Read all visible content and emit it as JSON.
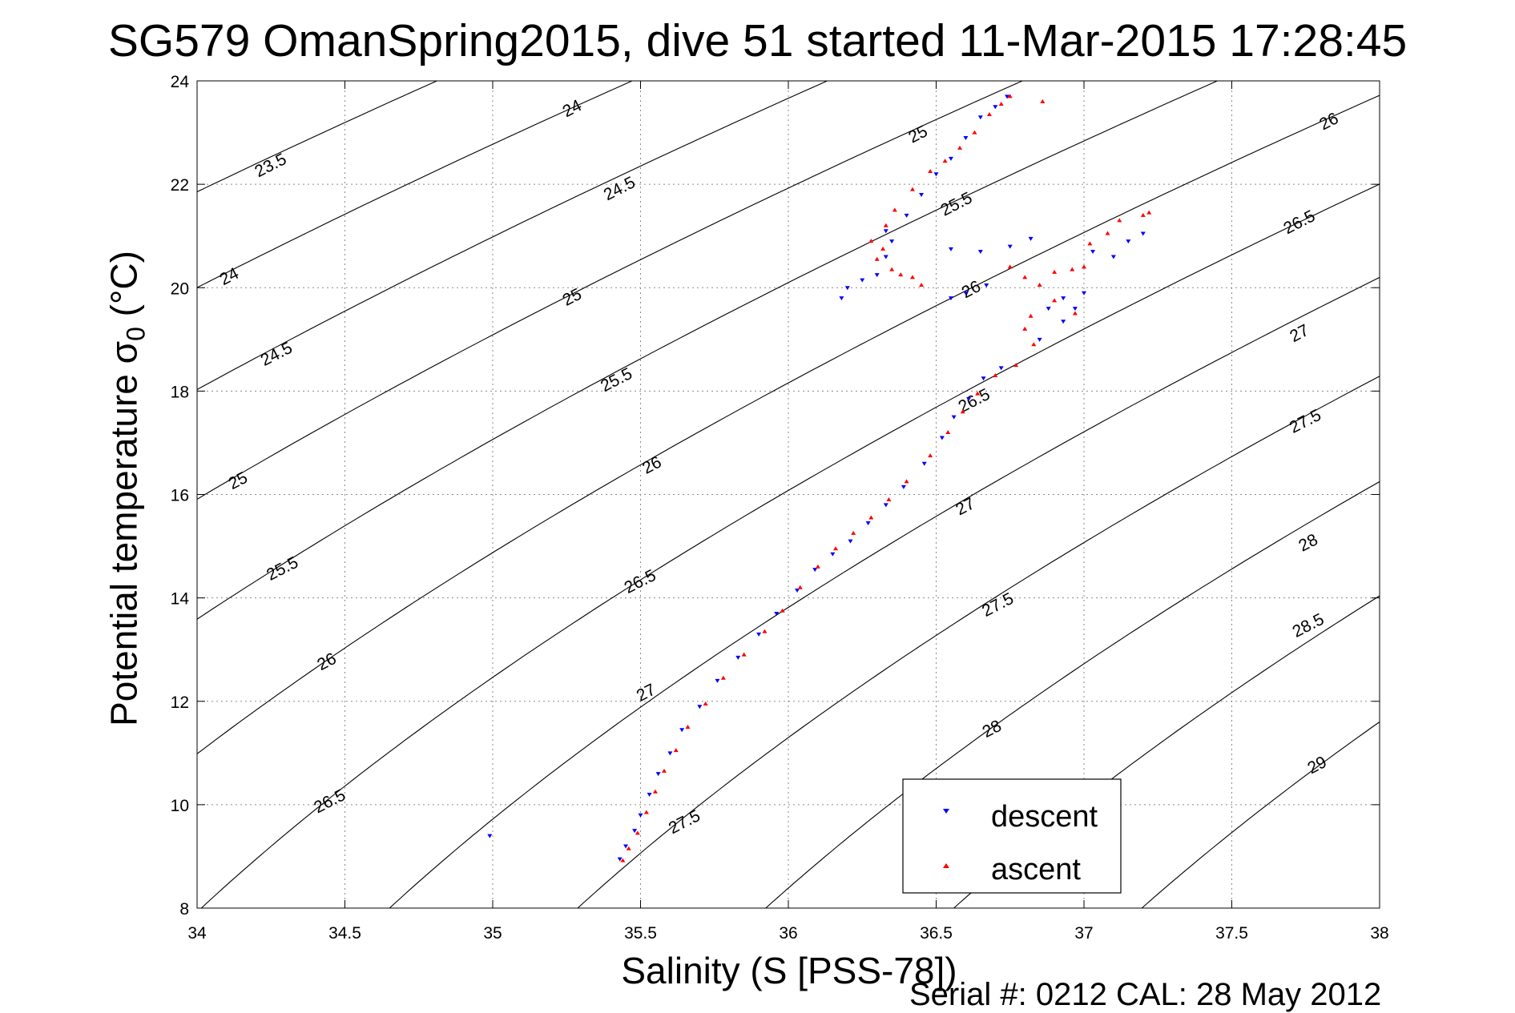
{
  "chart_data": {
    "type": "scatter",
    "title": "SG579 OmanSpring2015, dive 51 started 11-Mar-2015 17:28:45",
    "xlabel": "Salinity (S [PSS-78])",
    "ylabel": "Potential temperature σ",
    "ylabel_subscript": "0",
    "ylabel_unit": "(°C)",
    "xlim": [
      34,
      38
    ],
    "ylim": [
      8,
      24
    ],
    "x_ticks": [
      34,
      34.5,
      35,
      35.5,
      36,
      36.5,
      37,
      37.5,
      38
    ],
    "x_tick_labels": [
      "34",
      "34.5",
      "35",
      "35.5",
      "36",
      "36.5",
      "37",
      "37.5",
      "38"
    ],
    "y_ticks": [
      8,
      10,
      12,
      14,
      16,
      18,
      20,
      22,
      24
    ],
    "y_tick_labels": [
      "8",
      "10",
      "12",
      "14",
      "16",
      "18",
      "20",
      "22",
      "24"
    ],
    "grid": true,
    "legend_position": "bottom-right",
    "density_contours": {
      "levels": [
        23.5,
        24,
        24.5,
        25,
        25.5,
        26,
        26.5,
        27,
        27.5,
        28,
        28.5,
        29
      ],
      "color": "#000000",
      "labels": [
        {
          "text": "24",
          "x": 35.27,
          "y": 23.45
        },
        {
          "text": "23.5",
          "x": 34.25,
          "y": 22.35
        },
        {
          "text": "24.5",
          "x": 35.43,
          "y": 21.9
        },
        {
          "text": "25",
          "x": 36.44,
          "y": 22.95
        },
        {
          "text": "25.5",
          "x": 36.57,
          "y": 21.6
        },
        {
          "text": "26",
          "x": 37.83,
          "y": 23.2
        },
        {
          "text": "26.5",
          "x": 37.73,
          "y": 21.25
        },
        {
          "text": "24",
          "x": 34.11,
          "y": 20.2
        },
        {
          "text": "25",
          "x": 35.27,
          "y": 19.8
        },
        {
          "text": "24.5",
          "x": 34.27,
          "y": 18.7
        },
        {
          "text": "25.5",
          "x": 35.42,
          "y": 18.2
        },
        {
          "text": "26",
          "x": 36.62,
          "y": 19.95
        },
        {
          "text": "26.5",
          "x": 36.63,
          "y": 17.8
        },
        {
          "text": "27",
          "x": 37.73,
          "y": 19.1
        },
        {
          "text": "27.5",
          "x": 37.75,
          "y": 17.4
        },
        {
          "text": "25",
          "x": 34.14,
          "y": 16.25
        },
        {
          "text": "26",
          "x": 35.54,
          "y": 16.55
        },
        {
          "text": "27",
          "x": 36.6,
          "y": 15.75
        },
        {
          "text": "28",
          "x": 37.76,
          "y": 15.05
        },
        {
          "text": "25.5",
          "x": 34.29,
          "y": 14.55
        },
        {
          "text": "26.5",
          "x": 35.5,
          "y": 14.3
        },
        {
          "text": "27.5",
          "x": 36.71,
          "y": 13.85
        },
        {
          "text": "28.5",
          "x": 37.76,
          "y": 13.45
        },
        {
          "text": "26",
          "x": 34.44,
          "y": 12.75
        },
        {
          "text": "27",
          "x": 35.52,
          "y": 12.15
        },
        {
          "text": "28",
          "x": 36.69,
          "y": 11.45
        },
        {
          "text": "26.5",
          "x": 34.45,
          "y": 10.05
        },
        {
          "text": "27.5",
          "x": 35.65,
          "y": 9.65
        },
        {
          "text": "29",
          "x": 37.79,
          "y": 10.75
        }
      ]
    },
    "series": [
      {
        "name": "descent",
        "color": "#0000ff",
        "marker": "triangle-down",
        "points": [
          [
            35.43,
            8.95
          ],
          [
            35.45,
            9.2
          ],
          [
            35.48,
            9.5
          ],
          [
            35.5,
            9.8
          ],
          [
            35.53,
            10.2
          ],
          [
            35.56,
            10.6
          ],
          [
            35.6,
            11.0
          ],
          [
            35.64,
            11.45
          ],
          [
            35.7,
            11.9
          ],
          [
            35.76,
            12.4
          ],
          [
            35.83,
            12.85
          ],
          [
            35.9,
            13.3
          ],
          [
            35.96,
            13.7
          ],
          [
            36.03,
            14.15
          ],
          [
            36.09,
            14.55
          ],
          [
            36.15,
            14.85
          ],
          [
            36.21,
            15.1
          ],
          [
            36.27,
            15.45
          ],
          [
            36.33,
            15.8
          ],
          [
            36.39,
            16.15
          ],
          [
            36.46,
            16.6
          ],
          [
            36.52,
            17.1
          ],
          [
            36.56,
            17.5
          ],
          [
            36.61,
            17.85
          ],
          [
            36.66,
            18.25
          ],
          [
            36.72,
            18.45
          ],
          [
            36.85,
            19.0
          ],
          [
            36.93,
            19.35
          ],
          [
            36.97,
            19.6
          ],
          [
            37.0,
            19.9
          ],
          [
            36.93,
            19.8
          ],
          [
            36.88,
            19.6
          ],
          [
            37.03,
            20.7
          ],
          [
            37.1,
            20.6
          ],
          [
            37.15,
            20.9
          ],
          [
            37.2,
            21.05
          ],
          [
            36.55,
            19.8
          ],
          [
            36.6,
            19.9
          ],
          [
            36.67,
            20.05
          ],
          [
            36.55,
            20.75
          ],
          [
            36.65,
            20.7
          ],
          [
            36.75,
            20.8
          ],
          [
            36.82,
            20.95
          ],
          [
            36.18,
            19.8
          ],
          [
            36.2,
            20.0
          ],
          [
            36.25,
            20.15
          ],
          [
            36.3,
            20.25
          ],
          [
            36.33,
            20.6
          ],
          [
            36.35,
            20.9
          ],
          [
            36.33,
            21.1
          ],
          [
            36.4,
            21.4
          ],
          [
            36.45,
            21.8
          ],
          [
            36.5,
            22.2
          ],
          [
            36.55,
            22.5
          ],
          [
            36.6,
            22.9
          ],
          [
            36.65,
            23.3
          ],
          [
            36.7,
            23.5
          ],
          [
            36.74,
            23.7
          ],
          [
            34.99,
            9.4
          ]
        ]
      },
      {
        "name": "ascent",
        "color": "#ff0000",
        "marker": "triangle-up",
        "points": [
          [
            35.44,
            8.92
          ],
          [
            35.46,
            9.15
          ],
          [
            35.49,
            9.45
          ],
          [
            35.52,
            9.85
          ],
          [
            35.55,
            10.25
          ],
          [
            35.58,
            10.65
          ],
          [
            35.62,
            11.05
          ],
          [
            35.66,
            11.5
          ],
          [
            35.72,
            11.95
          ],
          [
            35.78,
            12.45
          ],
          [
            35.85,
            12.9
          ],
          [
            35.92,
            13.35
          ],
          [
            35.98,
            13.75
          ],
          [
            36.04,
            14.2
          ],
          [
            36.1,
            14.6
          ],
          [
            36.16,
            14.95
          ],
          [
            36.22,
            15.25
          ],
          [
            36.28,
            15.55
          ],
          [
            36.34,
            15.9
          ],
          [
            36.4,
            16.25
          ],
          [
            36.48,
            16.75
          ],
          [
            36.54,
            17.2
          ],
          [
            36.59,
            17.6
          ],
          [
            36.64,
            17.95
          ],
          [
            36.7,
            18.3
          ],
          [
            36.77,
            18.5
          ],
          [
            36.83,
            18.9
          ],
          [
            36.8,
            19.2
          ],
          [
            36.82,
            19.45
          ],
          [
            36.9,
            19.75
          ],
          [
            36.97,
            19.5
          ],
          [
            36.96,
            20.35
          ],
          [
            37.0,
            20.4
          ],
          [
            37.02,
            20.85
          ],
          [
            37.08,
            21.05
          ],
          [
            37.12,
            21.3
          ],
          [
            37.2,
            21.4
          ],
          [
            37.22,
            21.45
          ],
          [
            36.75,
            20.4
          ],
          [
            36.8,
            20.2
          ],
          [
            36.85,
            20.05
          ],
          [
            36.9,
            20.3
          ],
          [
            36.35,
            20.35
          ],
          [
            36.38,
            20.25
          ],
          [
            36.42,
            20.2
          ],
          [
            36.45,
            20.05
          ],
          [
            36.3,
            20.55
          ],
          [
            36.32,
            20.75
          ],
          [
            36.28,
            20.9
          ],
          [
            36.33,
            21.2
          ],
          [
            36.36,
            21.5
          ],
          [
            36.42,
            21.9
          ],
          [
            36.48,
            22.25
          ],
          [
            36.53,
            22.45
          ],
          [
            36.58,
            22.7
          ],
          [
            36.63,
            23.0
          ],
          [
            36.68,
            23.35
          ],
          [
            36.72,
            23.55
          ],
          [
            36.75,
            23.7
          ],
          [
            36.86,
            23.6
          ]
        ]
      }
    ]
  },
  "legend": {
    "descent_label": "descent",
    "ascent_label": "ascent"
  },
  "footer": {
    "serial": "Serial #: 0212  CAL: 28 May 2012"
  }
}
